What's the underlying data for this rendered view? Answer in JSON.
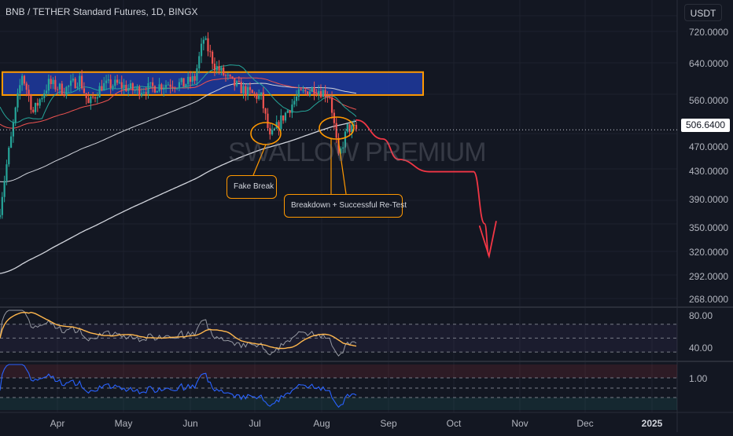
{
  "header": {
    "title": "BNB / TETHER Standard Futures, 1D, BINGX",
    "currency": "USDT"
  },
  "watermark": "SWALLOW PREMIUM",
  "price_axis": {
    "labels": [
      "720.0000",
      "640.0000",
      "560.0000",
      "470.0000",
      "430.0000",
      "390.0000",
      "350.0000",
      "320.0000",
      "292.0000",
      "268.0000"
    ],
    "last_price": "506.6400"
  },
  "rsi_axis": {
    "labels": [
      "80.00",
      "40.00"
    ]
  },
  "osc_axis": {
    "labels": [
      "1.00"
    ]
  },
  "time_axis": {
    "labels": [
      "Apr",
      "May",
      "Jun",
      "Jul",
      "Aug",
      "Sep",
      "Oct",
      "Nov",
      "Dec",
      "2025"
    ]
  },
  "annotations": {
    "fake_break": "Fake Break",
    "breakdown": "Breakdown + Successful Re-Test"
  },
  "colors": {
    "background": "#131722",
    "up": "#26a69a",
    "down": "#ef5350",
    "zone_fill": "#1e3aa0",
    "zone_border": "#ff9800",
    "ma_fast": "#26a69a",
    "ma_mid": "#ef5350",
    "ma_slow": "#d1d4dc",
    "projection": "#f23645",
    "rsi_line": "#9598a1",
    "rsi_ma": "#ffb74d",
    "osc_line": "#2962ff"
  },
  "chart_data": {
    "type": "candlestick",
    "symbol": "BNB / TETHER Standard Futures",
    "interval": "1D",
    "exchange": "BINGX",
    "last_price": 506.64,
    "resistance_zone": [
      575,
      625
    ],
    "x_range": [
      "2024-03-05",
      "2025-01-05"
    ],
    "y_range": [
      268,
      750
    ],
    "close_path": [
      {
        "date": "2024-03-05",
        "close": 380
      },
      {
        "date": "2024-03-10",
        "close": 490
      },
      {
        "date": "2024-03-15",
        "close": 620
      },
      {
        "date": "2024-03-20",
        "close": 540
      },
      {
        "date": "2024-03-27",
        "close": 600
      },
      {
        "date": "2024-04-03",
        "close": 585
      },
      {
        "date": "2024-04-10",
        "close": 610
      },
      {
        "date": "2024-04-14",
        "close": 555
      },
      {
        "date": "2024-04-20",
        "close": 595
      },
      {
        "date": "2024-04-27",
        "close": 598
      },
      {
        "date": "2024-05-05",
        "close": 585
      },
      {
        "date": "2024-05-12",
        "close": 590
      },
      {
        "date": "2024-05-20",
        "close": 600
      },
      {
        "date": "2024-05-27",
        "close": 598
      },
      {
        "date": "2024-06-01",
        "close": 610
      },
      {
        "date": "2024-06-05",
        "close": 705
      },
      {
        "date": "2024-06-10",
        "close": 640
      },
      {
        "date": "2024-06-18",
        "close": 600
      },
      {
        "date": "2024-06-25",
        "close": 580
      },
      {
        "date": "2024-07-01",
        "close": 570
      },
      {
        "date": "2024-07-05",
        "close": 490
      },
      {
        "date": "2024-07-10",
        "close": 525
      },
      {
        "date": "2024-07-18",
        "close": 575
      },
      {
        "date": "2024-07-25",
        "close": 590
      },
      {
        "date": "2024-08-01",
        "close": 575
      },
      {
        "date": "2024-08-05",
        "close": 455
      },
      {
        "date": "2024-08-09",
        "close": 510
      },
      {
        "date": "2024-08-13",
        "close": 506.64
      }
    ],
    "projection": [
      {
        "date": "2024-08-13",
        "value": 525
      },
      {
        "date": "2024-08-25",
        "value": 490
      },
      {
        "date": "2024-09-01",
        "value": 455
      },
      {
        "date": "2024-09-15",
        "value": 435
      },
      {
        "date": "2024-10-05",
        "value": 435
      },
      {
        "date": "2024-10-10",
        "value": 360
      },
      {
        "date": "2024-10-12",
        "value": 320
      }
    ],
    "rsi": {
      "levels": [
        70,
        50,
        30
      ],
      "last": 40
    },
    "legend": [],
    "grid": true
  }
}
